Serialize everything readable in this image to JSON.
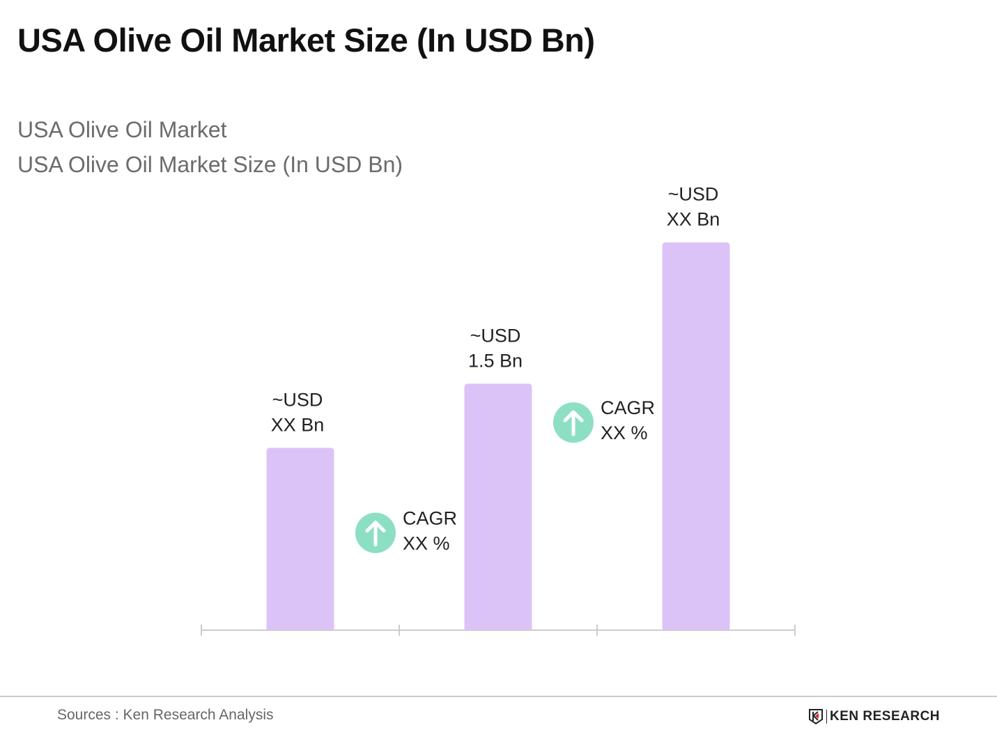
{
  "title": "USA Olive Oil Market Size (In USD Bn)",
  "subtitle1": "USA Olive Oil Market",
  "subtitle2": "USA Olive Oil Market Size (In USD Bn)",
  "chart_data": {
    "type": "bar",
    "title": "USA Olive Oil Market Size (In USD Bn)",
    "categories": [
      "",
      "",
      ""
    ],
    "values": [
      1.11,
      1.5,
      2.36
    ],
    "data_labels": [
      [
        "~USD",
        "XX Bn"
      ],
      [
        "~USD",
        "1.5 Bn"
      ],
      [
        "~USD",
        "XX Bn"
      ]
    ],
    "annotations": [
      {
        "line1": "CAGR",
        "line2": "XX %",
        "icon": "arrow-up-icon"
      },
      {
        "line1": "CAGR",
        "line2": "XX %",
        "icon": "arrow-up-icon"
      }
    ],
    "ylim": [
      0,
      2.8
    ],
    "grid": false,
    "xlabel": "",
    "ylabel": "",
    "colors": {
      "bar": "#dcc3f7",
      "cagr": "#8ddfc4",
      "axis": "#cccccc"
    }
  },
  "footer": {
    "source": "Sources : Ken Research Analysis",
    "logo": "KEN RESEARCH"
  }
}
